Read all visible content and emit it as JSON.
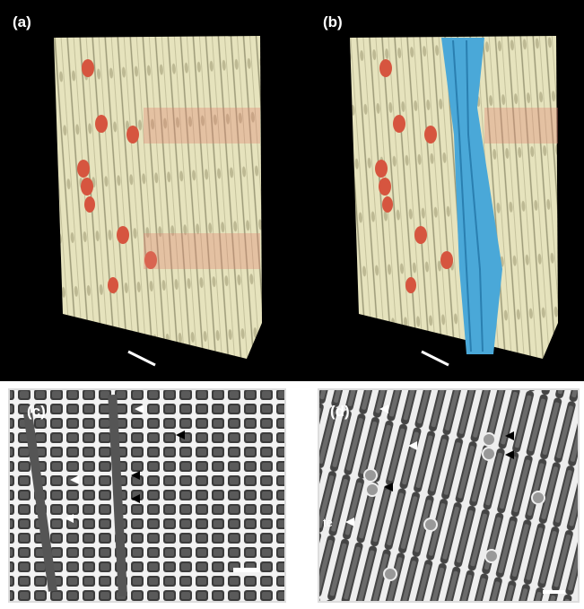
{
  "panels": [
    {
      "label": "(a)"
    },
    {
      "label": "(b)"
    },
    {
      "label": "(c)"
    },
    {
      "label": "(d)",
      "annotation": "te"
    }
  ]
}
